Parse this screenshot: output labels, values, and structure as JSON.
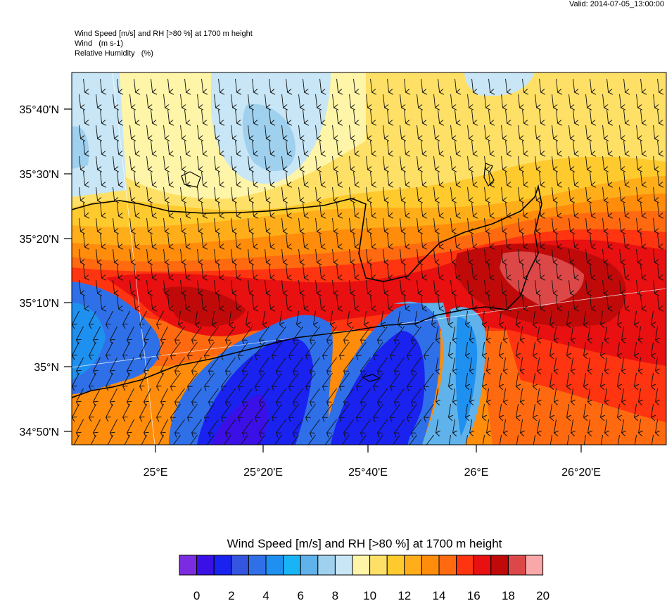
{
  "header": {
    "valid": "Valid: 2014-07-05_13:00:00",
    "title_line1": "Wind Speed [m/s] and RH [>80 %] at 1700 m height",
    "title_line2": "Wind   (m s-1)",
    "title_line3": "Relative Humidity   (%)"
  },
  "map": {
    "lat_labels": [
      "35°40'N",
      "35°30'N",
      "35°20'N",
      "35°10'N",
      "35°N",
      "34°50'N"
    ],
    "lon_labels": [
      "25°E",
      "25°20'E",
      "25°40'E",
      "26°E",
      "26°20'E"
    ],
    "wind_direction": "mostly southward (north wind)"
  },
  "colorbar": {
    "title": "Wind Speed [m/s] and RH [>80 %] at 1700 m height",
    "tick_labels": [
      "0",
      "2",
      "4",
      "6",
      "8",
      "10",
      "12",
      "14",
      "16",
      "18",
      "20"
    ],
    "colors": [
      "#7b2be0",
      "#3a10e6",
      "#1a22f0",
      "#3355e0",
      "#2f70e8",
      "#1e90f0",
      "#18b4f5",
      "#5fb2ea",
      "#9fd0ee",
      "#c8e6f5",
      "#fff5a8",
      "#ffe066",
      "#ffca2e",
      "#ffae1a",
      "#ff8c0a",
      "#ff6a10",
      "#ff3410",
      "#e81010",
      "#c00a0a",
      "#dc4848",
      "#f8a8a8"
    ]
  }
}
